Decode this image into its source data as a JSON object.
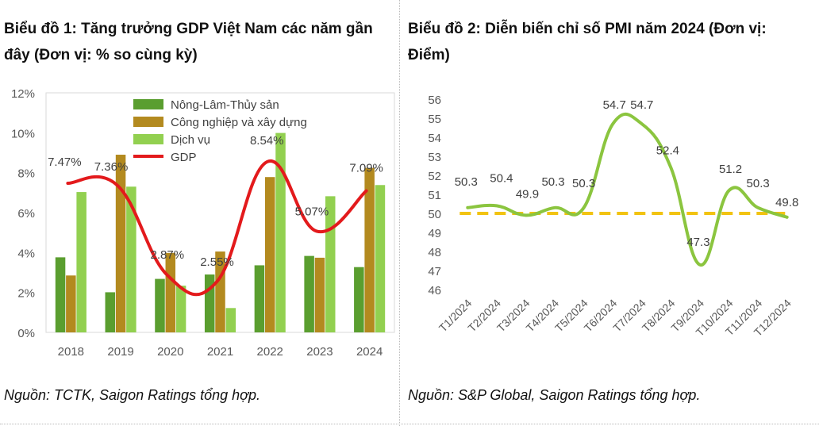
{
  "left": {
    "title": "Biểu đồ 1: Tăng trưởng GDP Việt Nam các năm gần đây (Đơn vị: % so cùng kỳ)",
    "source": "Nguồn: TCTK, Saigon Ratings tổng hợp."
  },
  "right": {
    "title": "Biểu đồ 2: Diễn biến chỉ số PMI năm 2024 (Đơn vị: Điểm)",
    "source": "Nguồn: S&P Global, Saigon Ratings tổng hợp."
  },
  "chart_data": [
    {
      "type": "bar",
      "categories": [
        "2018",
        "2019",
        "2020",
        "2021",
        "2022",
        "2023",
        "2024"
      ],
      "series": [
        {
          "name": "Nông-Lâm-Thủy sản",
          "type": "bar",
          "color": "#5a9e2f",
          "values": [
            3.76,
            2.01,
            2.68,
            2.9,
            3.36,
            3.83,
            3.27
          ]
        },
        {
          "name": "Công nghiệp và xây dựng",
          "type": "bar",
          "color": "#b38a1f",
          "values": [
            2.85,
            8.9,
            3.98,
            4.05,
            7.78,
            3.74,
            8.24
          ]
        },
        {
          "name": "Dịch vụ",
          "type": "bar",
          "color": "#92d050",
          "values": [
            7.03,
            7.3,
            2.34,
            1.22,
            9.99,
            6.82,
            7.38
          ]
        },
        {
          "name": "GDP",
          "type": "line",
          "color": "#e31a1c",
          "values": [
            7.47,
            7.36,
            2.87,
            2.55,
            8.54,
            5.07,
            7.09
          ],
          "labels": [
            "7.47%",
            "7.36%",
            "2.87%",
            "2.55%",
            "8.54%",
            "5.07%",
            "7.09%"
          ]
        }
      ],
      "yticks": [
        "0%",
        "2%",
        "4%",
        "6%",
        "8%",
        "10%",
        "12%"
      ],
      "ylim": [
        0,
        12
      ],
      "legend": "top-left",
      "grid": false
    },
    {
      "type": "line",
      "categories": [
        "T1/2024",
        "T2/2024",
        "T3/2024",
        "T4/2024",
        "T5/2024",
        "T6/2024",
        "T7/2024",
        "T8/2024",
        "T9/2024",
        "T10/2024",
        "T11/2024",
        "T12/2024"
      ],
      "series": [
        {
          "type": "line",
          "color": "#8bc53f",
          "values": [
            50.3,
            50.4,
            49.9,
            50.3,
            50.3,
            54.7,
            54.7,
            52.4,
            47.3,
            51.2,
            50.3,
            49.8
          ],
          "labels": [
            "50.3",
            "50.4",
            "49.9",
            "50.3",
            "50.3",
            "54.7",
            "54.7",
            "52.4",
            "47.3",
            "51.2",
            "50.3",
            "49.8"
          ]
        }
      ],
      "reference_line": {
        "value": 50,
        "color": "#f2c311",
        "style": "dashed"
      },
      "yticks": [
        "46",
        "47",
        "48",
        "49",
        "50",
        "51",
        "52",
        "53",
        "54",
        "55",
        "56"
      ],
      "ylim": [
        46,
        56
      ],
      "grid": false
    }
  ]
}
